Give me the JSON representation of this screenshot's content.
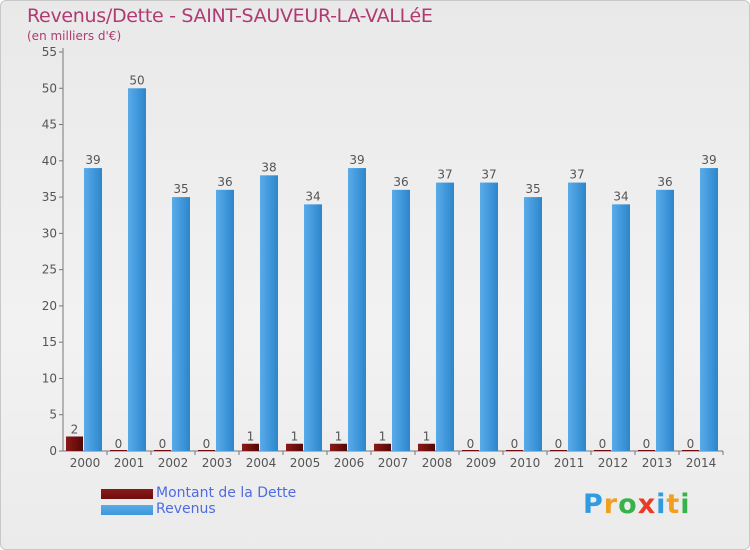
{
  "chart_data": {
    "type": "bar",
    "title": "Revenus/Dette - SAINT-SAUVEUR-LA-VALLéE",
    "subtitle": "(en milliers d'€)",
    "categories": [
      "2000",
      "2001",
      "2002",
      "2003",
      "2004",
      "2005",
      "2006",
      "2007",
      "2008",
      "2009",
      "2010",
      "2011",
      "2012",
      "2013",
      "2014"
    ],
    "series": [
      {
        "name": "Montant de la Dette",
        "color": "#6e0e0e",
        "values": [
          2,
          0,
          0,
          0,
          1,
          1,
          1,
          1,
          1,
          0,
          0,
          0,
          0,
          0,
          0
        ]
      },
      {
        "name": "Revenus",
        "color": "#3d96d9",
        "values": [
          39,
          50,
          35,
          36,
          38,
          34,
          39,
          36,
          37,
          37,
          35,
          37,
          34,
          36,
          39
        ]
      }
    ],
    "ylim": [
      0,
      55
    ],
    "yticks": [
      0,
      5,
      10,
      15,
      20,
      25,
      30,
      35,
      40,
      45,
      50,
      55
    ],
    "grid": false,
    "legend": "bottom-left"
  },
  "logo": {
    "p": "P",
    "r": "r",
    "o": "o",
    "x": "x",
    "i1": "i",
    "t": "t",
    "i2": "i"
  }
}
